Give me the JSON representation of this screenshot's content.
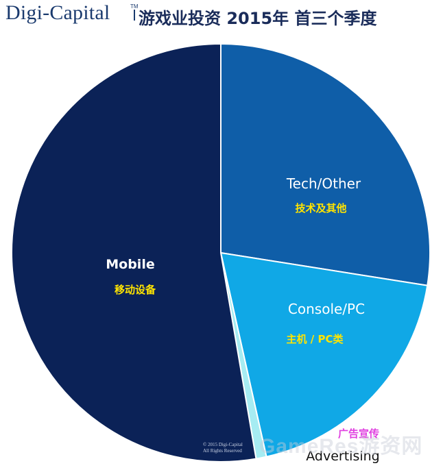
{
  "header": {
    "brand": "Digi-Capital",
    "brand_tm": "TM",
    "title": "游戏业投资 2015年 首三个季度"
  },
  "chart_data": {
    "type": "pie",
    "title": "游戏业投资 2015年 首三个季度",
    "slices": [
      {
        "label": "Tech/Other",
        "sublabel": "技术及其他",
        "value": 27.5,
        "color": "#0f5ea8"
      },
      {
        "label": "Console/PC",
        "sublabel": "主机 / PC类",
        "value": 19.0,
        "color": "#10a8e6"
      },
      {
        "label": "Advertising",
        "sublabel": "广告宣传",
        "value": 0.8,
        "color": "#a6ecf2"
      },
      {
        "label": "Mobile",
        "sublabel": "移动设备",
        "value": 52.7,
        "color": "#0b2257"
      }
    ]
  },
  "footer": {
    "copyright_line1": "© 2015 Digi-Capital",
    "copyright_line2": "All Rights Reserved",
    "watermark": "GameRes游资网"
  }
}
